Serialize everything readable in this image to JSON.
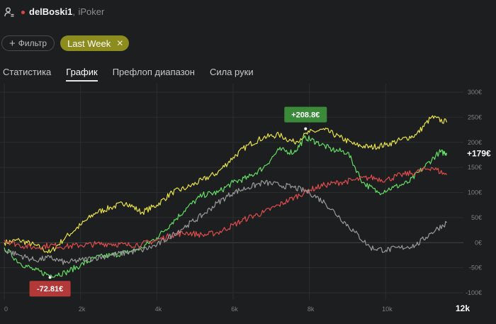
{
  "header": {
    "user_icon": "user-settings-icon",
    "player_name": "delBoski1",
    "separator": ",",
    "room": "iPoker"
  },
  "filters": {
    "add_filter_label": "Фильтр",
    "period_label": "Last Week"
  },
  "tabs": [
    {
      "label": "Статистика",
      "active": false
    },
    {
      "label": "График",
      "active": true
    },
    {
      "label": "Префлоп диапазон",
      "active": false
    },
    {
      "label": "Сила руки",
      "active": false
    }
  ],
  "colors": {
    "yellow": "#e8e34a",
    "green": "#63dd63",
    "red": "#df4c4c",
    "gray": "#9a9a9a",
    "max_badge": "#3a8a3a",
    "min_badge": "#b33838"
  },
  "chart_data": {
    "type": "line",
    "x_ticks": [
      "0",
      "2k",
      "4k",
      "6k",
      "8k",
      "10k",
      "12k"
    ],
    "x_max_label": "12k",
    "y_ticks": [
      "300€",
      "250€",
      "200€",
      "150€",
      "100€",
      "50€",
      "0€",
      "-50€",
      "-100€"
    ],
    "xlim": [
      0,
      12000
    ],
    "ylim": [
      -100,
      300
    ],
    "final_value_label": "+179€",
    "max_label": "+208.8€",
    "min_label": "-72.81€",
    "series": [
      {
        "color": "yellow",
        "x": [
          0,
          400,
          800,
          1200,
          1600,
          2000,
          2400,
          2800,
          3200,
          3600,
          4000,
          4400,
          4800,
          5200,
          5600,
          6000,
          6400,
          6800,
          7200,
          7600,
          8000,
          8400,
          8800,
          9200,
          9600,
          10000,
          10400,
          10800,
          11200,
          11600
        ],
        "y": [
          0,
          5,
          -5,
          -20,
          10,
          35,
          60,
          70,
          80,
          60,
          75,
          100,
          110,
          125,
          140,
          170,
          195,
          210,
          215,
          200,
          220,
          225,
          210,
          195,
          190,
          195,
          205,
          215,
          250,
          240
        ]
      },
      {
        "color": "green",
        "x": [
          0,
          400,
          800,
          1200,
          1600,
          2000,
          2400,
          2800,
          3200,
          3600,
          4000,
          4400,
          4800,
          5200,
          5600,
          6000,
          6400,
          6800,
          7200,
          7600,
          7900,
          8200,
          8600,
          9000,
          9400,
          9800,
          10200,
          10600,
          11000,
          11400,
          11600
        ],
        "y": [
          -10,
          -40,
          -55,
          -65,
          -60,
          -45,
          -30,
          -25,
          -20,
          -10,
          10,
          40,
          70,
          95,
          100,
          120,
          130,
          150,
          185,
          180,
          210,
          200,
          185,
          180,
          120,
          100,
          110,
          120,
          150,
          180,
          179
        ]
      },
      {
        "color": "red",
        "x": [
          0,
          400,
          800,
          1200,
          1600,
          2000,
          2400,
          2800,
          3200,
          3600,
          4000,
          4400,
          4800,
          5200,
          5600,
          6000,
          6400,
          6800,
          7200,
          7600,
          8000,
          8400,
          8800,
          9200,
          9600,
          10000,
          10400,
          10800,
          11200,
          11600
        ],
        "y": [
          5,
          -5,
          -10,
          -5,
          -8,
          -5,
          -3,
          -2,
          -5,
          -3,
          5,
          15,
          20,
          15,
          20,
          35,
          50,
          60,
          75,
          90,
          105,
          115,
          120,
          125,
          130,
          125,
          135,
          140,
          150,
          135
        ]
      },
      {
        "color": "gray",
        "x": [
          0,
          400,
          800,
          1200,
          1600,
          2000,
          2400,
          2800,
          3200,
          3600,
          4000,
          4400,
          4800,
          5200,
          5600,
          6000,
          6400,
          6800,
          7200,
          7600,
          8000,
          8400,
          8800,
          9200,
          9600,
          10000,
          10400,
          10800,
          11200,
          11600
        ],
        "y": [
          -15,
          -25,
          -35,
          -30,
          -40,
          -35,
          -30,
          -25,
          -20,
          -15,
          -5,
          15,
          35,
          55,
          80,
          100,
          110,
          120,
          115,
          110,
          100,
          80,
          50,
          20,
          -10,
          -15,
          -10,
          -5,
          20,
          40
        ]
      }
    ]
  }
}
